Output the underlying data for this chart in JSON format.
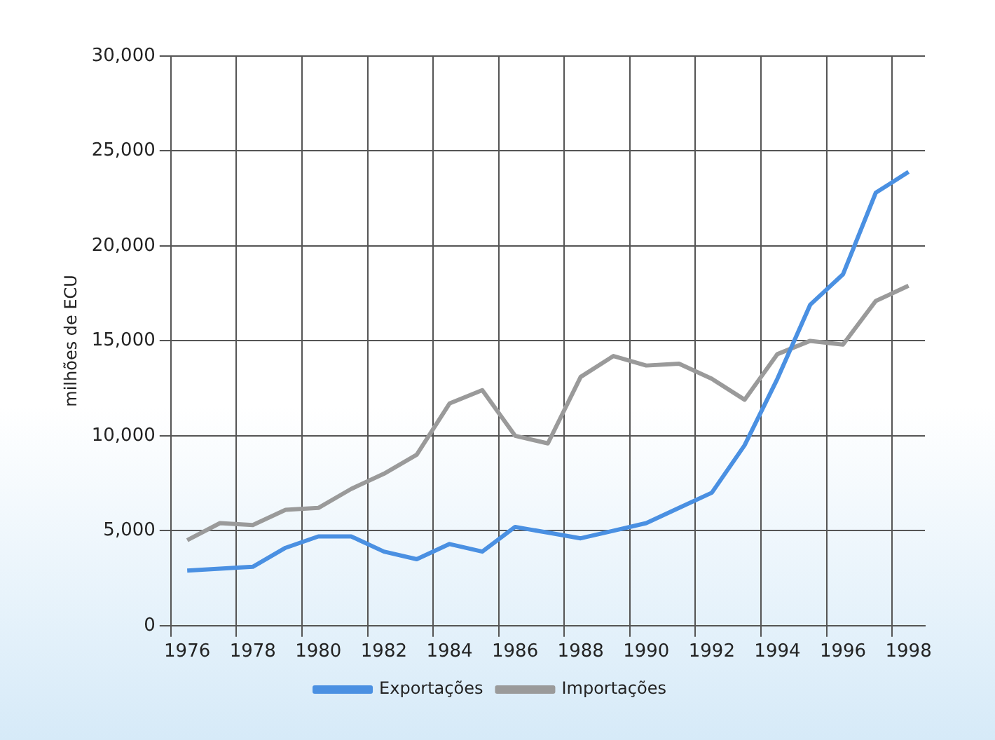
{
  "chart_data": {
    "type": "line",
    "ylabel": "milhões de ECU",
    "categories": [
      "1976",
      null,
      "1978",
      null,
      "1980",
      null,
      "1982",
      null,
      "1984",
      null,
      "1986",
      null,
      "1988",
      null,
      "1990",
      null,
      "1992",
      null,
      "1994",
      null,
      "1996",
      null,
      "1998"
    ],
    "series": [
      {
        "name": "Exportações",
        "color": "#4a90e2",
        "values": [
          2900,
          3000,
          3100,
          4100,
          4700,
          4700,
          3900,
          3500,
          4300,
          3900,
          5200,
          4900,
          4600,
          5000,
          5400,
          6200,
          7000,
          9500,
          13000,
          16900,
          18500,
          22800,
          23900
        ]
      },
      {
        "name": "Importações",
        "color": "#9a9a9a",
        "values": [
          4500,
          5400,
          5300,
          6100,
          6200,
          7200,
          8000,
          9000,
          11700,
          12400,
          10000,
          9600,
          13100,
          14200,
          13700,
          13800,
          13000,
          11900,
          14300,
          15000,
          14800,
          17100,
          17900
        ]
      }
    ],
    "ylim": [
      0,
      30000
    ],
    "yticks": [
      {
        "value": 0,
        "label": "0"
      },
      {
        "value": 5000,
        "label": "5,000"
      },
      {
        "value": 10000,
        "label": "10,000"
      },
      {
        "value": 15000,
        "label": "15,000"
      },
      {
        "value": 20000,
        "label": "20,000"
      },
      {
        "value": 25000,
        "label": "25,000"
      },
      {
        "value": 30000,
        "label": "30,000"
      }
    ],
    "grid": true,
    "legend": "bottom",
    "marker": "none",
    "line_style": "solid"
  }
}
